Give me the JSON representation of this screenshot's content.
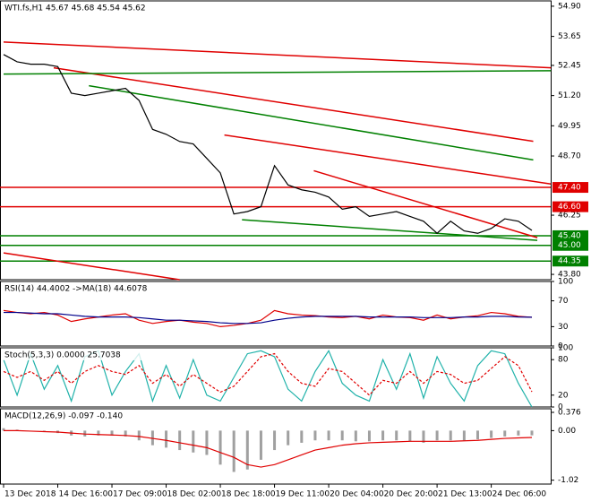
{
  "chart_data": [
    {
      "type": "line",
      "title": "WTI.fs,H1  45.67 45.68 45.54 45.62",
      "categories": [
        "13 Dec 2018",
        null,
        null,
        null,
        "14 Dec 16:00",
        null,
        null,
        null,
        "17 Dec 09:00",
        null,
        null,
        null,
        "18 Dec 02:00",
        null,
        null,
        null,
        "18 Dec 18:00",
        null,
        null,
        null,
        "19 Dec 11:00",
        null,
        null,
        null,
        "20 Dec 04:00",
        null,
        null,
        null,
        "20 Dec 20:00",
        null,
        null,
        null,
        "21 Dec 13:00",
        null,
        null,
        null,
        "24 Dec 06:00",
        null,
        null,
        null
      ],
      "series": [
        {
          "name": "WTI.fs",
          "color": "#000000",
          "values": [
            52.9,
            52.6,
            52.5,
            52.5,
            52.4,
            51.3,
            51.2,
            51.3,
            51.4,
            51.5,
            51.0,
            49.8,
            49.6,
            49.3,
            49.2,
            48.6,
            48.0,
            46.3,
            46.4,
            46.6,
            48.3,
            47.5,
            47.3,
            47.2,
            47.0,
            46.5,
            46.6,
            46.2,
            46.3,
            46.4,
            46.2,
            46.0,
            45.5,
            46.0,
            45.6,
            45.5,
            45.7,
            46.1,
            46.0,
            45.62
          ]
        }
      ],
      "ylim": [
        43.58,
        55.12
      ],
      "yticks": [
        {
          "value": 54.9,
          "label": "54.90"
        },
        {
          "value": 53.65,
          "label": "53.65"
        },
        {
          "value": 52.45,
          "label": "52.45"
        },
        {
          "value": 51.2,
          "label": "51.20"
        },
        {
          "value": 49.95,
          "label": "49.95"
        },
        {
          "value": 48.7,
          "label": "48.70"
        },
        {
          "value": 46.25,
          "label": "46.25"
        },
        {
          "value": 43.8,
          "label": "43.80"
        }
      ],
      "levels": [
        {
          "value": 47.4,
          "label": "47.40",
          "color": "#e00000"
        },
        {
          "value": 46.6,
          "label": "46.60",
          "color": "#e00000"
        },
        {
          "value": 45.4,
          "label": "45.40",
          "color": "#008000"
        },
        {
          "value": 45.0,
          "label": "45.00",
          "color": "#008000"
        },
        {
          "value": 44.35,
          "label": "44.35",
          "color": "#008000"
        }
      ],
      "trendlines": [
        {
          "color": "#e00000",
          "x": [
            0,
            40.4
          ],
          "values": [
            53.42,
            52.35
          ]
        },
        {
          "color": "#e00000",
          "x": [
            3.7,
            39.1
          ],
          "values": [
            52.35,
            49.31
          ]
        },
        {
          "color": "#e00000",
          "x": [
            16.3,
            40.4
          ],
          "values": [
            49.57,
            47.54
          ]
        },
        {
          "color": "#e00000",
          "x": [
            22.9,
            39.4
          ],
          "values": [
            48.09,
            45.32
          ]
        },
        {
          "color": "#e00000",
          "x": [
            0,
            13
          ],
          "values": [
            44.69,
            43.58
          ]
        },
        {
          "color": "#008000",
          "x": [
            0,
            40.4
          ],
          "values": [
            52.09,
            52.23
          ]
        },
        {
          "color": "#008000",
          "x": [
            6.3,
            39.1
          ],
          "values": [
            51.61,
            48.54
          ]
        },
        {
          "color": "#008000",
          "x": [
            17.6,
            39.4
          ],
          "values": [
            46.06,
            45.21
          ]
        }
      ]
    },
    {
      "type": "line",
      "title": "RSI(14) 44.4002 ->MA(18) 44.6078",
      "series": [
        {
          "name": "RSI(14)",
          "color": "#e00000",
          "values": [
            55,
            52,
            50,
            52,
            48,
            38,
            42,
            45,
            48,
            50,
            40,
            35,
            38,
            40,
            37,
            35,
            30,
            32,
            35,
            40,
            55,
            50,
            48,
            47,
            45,
            44,
            46,
            42,
            48,
            45,
            44,
            40,
            48,
            42,
            45,
            47,
            52,
            50,
            46,
            44.4
          ]
        },
        {
          "name": "MA(18)",
          "color": "#00008b",
          "values": [
            52,
            52,
            51,
            50,
            50,
            48,
            46,
            45,
            45,
            45,
            44,
            42,
            40,
            40,
            39,
            38,
            36,
            35,
            35,
            36,
            40,
            43,
            45,
            46,
            46,
            46,
            46,
            45,
            45,
            45,
            45,
            44,
            44,
            44,
            45,
            45,
            46,
            46,
            45,
            44.6
          ]
        }
      ],
      "ylim": [
        0,
        100
      ],
      "yticks": [
        100,
        70,
        30,
        0
      ]
    },
    {
      "type": "line",
      "title": "Stoch(5,3,3) 0.0000 25.7038",
      "series": [
        {
          "name": "Main",
          "color": "#20b2aa",
          "values": [
            80,
            20,
            90,
            30,
            70,
            10,
            85,
            95,
            20,
            60,
            90,
            10,
            70,
            15,
            80,
            20,
            10,
            50,
            90,
            95,
            85,
            30,
            10,
            60,
            95,
            40,
            20,
            10,
            80,
            30,
            90,
            15,
            85,
            40,
            10,
            70,
            95,
            90,
            40,
            0
          ]
        },
        {
          "name": "Signal",
          "color": "#e00000",
          "dash": true,
          "values": [
            60,
            50,
            60,
            45,
            60,
            40,
            60,
            70,
            60,
            55,
            70,
            40,
            55,
            35,
            55,
            40,
            25,
            35,
            60,
            85,
            90,
            60,
            40,
            35,
            65,
            60,
            40,
            20,
            45,
            40,
            60,
            40,
            60,
            55,
            40,
            45,
            65,
            85,
            70,
            25.7
          ]
        }
      ],
      "ylim": [
        0,
        100
      ],
      "yticks": [
        100,
        80,
        20,
        0
      ]
    },
    {
      "type": "line",
      "title": "MACD(12,26,9) -0.097 -0.140",
      "series": [
        {
          "name": "MACD",
          "color": "#a0a0a0",
          "bars": true,
          "values": [
            0.05,
            0.02,
            0,
            -0.02,
            -0.05,
            -0.1,
            -0.12,
            -0.1,
            -0.1,
            -0.12,
            -0.2,
            -0.3,
            -0.35,
            -0.4,
            -0.45,
            -0.5,
            -0.7,
            -0.85,
            -0.8,
            -0.6,
            -0.4,
            -0.3,
            -0.25,
            -0.2,
            -0.2,
            -0.2,
            -0.22,
            -0.22,
            -0.2,
            -0.2,
            -0.22,
            -0.25,
            -0.2,
            -0.2,
            -0.2,
            -0.18,
            -0.15,
            -0.12,
            -0.1,
            -0.097
          ]
        },
        {
          "name": "Signal",
          "color": "#e00000",
          "values": [
            0,
            0,
            -0.01,
            -0.02,
            -0.03,
            -0.05,
            -0.07,
            -0.08,
            -0.09,
            -0.1,
            -0.12,
            -0.16,
            -0.2,
            -0.25,
            -0.3,
            -0.35,
            -0.45,
            -0.55,
            -0.7,
            -0.75,
            -0.7,
            -0.6,
            -0.5,
            -0.4,
            -0.35,
            -0.3,
            -0.27,
            -0.25,
            -0.24,
            -0.23,
            -0.22,
            -0.22,
            -0.22,
            -0.22,
            -0.21,
            -0.2,
            -0.18,
            -0.16,
            -0.15,
            -0.14
          ]
        }
      ],
      "ylim": [
        -1.1,
        0.45
      ],
      "yticks": [
        0.376,
        {
          "value": 0,
          "label": "0.00"
        },
        -1.02
      ]
    }
  ]
}
